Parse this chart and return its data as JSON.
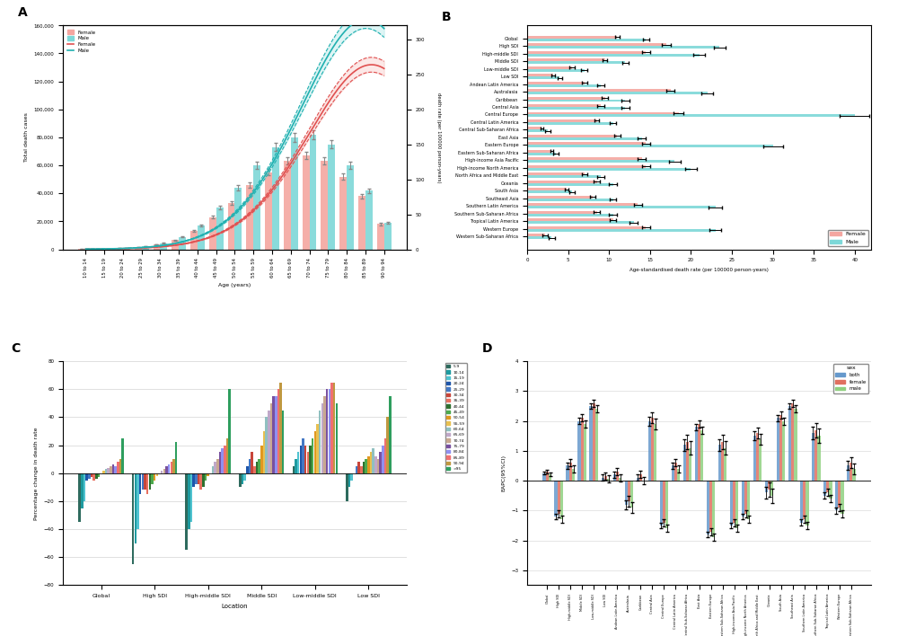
{
  "A": {
    "age_groups": [
      "10 to 14",
      "15 to 19",
      "20 to 24",
      "25 to 29",
      "30 to 34",
      "35 to 39",
      "40 to 44",
      "45 to 49",
      "50 to 54",
      "55 to 59",
      "60 to 64",
      "65 to 69",
      "70 to 74",
      "75 to 79",
      "80 to 84",
      "85 to 89",
      "90 to 94"
    ],
    "female_deaths": [
      300,
      500,
      900,
      1800,
      3500,
      6500,
      13000,
      23000,
      33000,
      46000,
      55000,
      63000,
      67000,
      63000,
      52000,
      38000,
      18000
    ],
    "male_deaths": [
      350,
      600,
      1000,
      2200,
      4500,
      9000,
      17000,
      30000,
      44000,
      60000,
      73000,
      80000,
      82000,
      75000,
      60000,
      42000,
      19000
    ],
    "female_rate": [
      0.3,
      0.5,
      0.9,
      1.8,
      3.5,
      6.5,
      13,
      23,
      36,
      58,
      85,
      115,
      155,
      205,
      245,
      260,
      270
    ],
    "male_rate": [
      0.3,
      0.6,
      1.1,
      2.5,
      5.0,
      10,
      18,
      33,
      52,
      80,
      120,
      165,
      225,
      280,
      315,
      320,
      325
    ],
    "female_color": "#F4A6A0",
    "male_color": "#7DD8D8",
    "female_line": "#E05050",
    "male_line": "#20B0B0",
    "female_line_dark": "#C03030",
    "male_line_dark": "#108080",
    "ylabel_left": "Total death cases",
    "ylabel_right": "death rate (per 100000 person-years)",
    "xlabel": "Age (years)",
    "ylim_left": 160000,
    "ylim_right": 320
  },
  "B": {
    "regions": [
      "Western Sub-Saharan Africa",
      "Western Europe",
      "Tropical Latin America",
      "Southern Sub-Saharan Africa",
      "Southern Latin America",
      "Southeast Asia",
      "South Asia",
      "Oceania",
      "North Africa and Middle East",
      "High-income North America",
      "High-income Asia Pacific",
      "Eastern Sub-Saharan Africa",
      "Eastern Europe",
      "East Asia",
      "Central Sub-Saharan Africa",
      "Central Latin America",
      "Central Europe",
      "Central Asia",
      "Caribbean",
      "Australasia",
      "Andean Latin America",
      "Low SDI",
      "Low-middle SDI",
      "Middle SDI",
      "High-middle SDI",
      "High SDI",
      "Global"
    ],
    "female_vals": [
      2.2,
      14.5,
      10.5,
      8.5,
      13.5,
      8.0,
      4.8,
      8.5,
      7.0,
      14.5,
      14.0,
      3.0,
      14.5,
      11.0,
      1.8,
      8.5,
      18.5,
      9.0,
      9.5,
      17.5,
      7.0,
      3.2,
      5.5,
      9.5,
      14.5,
      17.0,
      11.0
    ],
    "male_vals": [
      3.0,
      23.0,
      13.0,
      10.5,
      23.0,
      10.5,
      5.5,
      10.5,
      9.0,
      20.0,
      18.0,
      3.5,
      30.0,
      14.0,
      2.5,
      10.5,
      40.0,
      12.0,
      12.0,
      22.0,
      9.0,
      4.0,
      7.0,
      12.0,
      21.0,
      23.5,
      14.5
    ],
    "female_err": [
      0.3,
      0.5,
      0.4,
      0.4,
      0.5,
      0.3,
      0.2,
      0.4,
      0.3,
      0.5,
      0.5,
      0.2,
      0.5,
      0.4,
      0.2,
      0.3,
      0.6,
      0.4,
      0.4,
      0.5,
      0.3,
      0.2,
      0.3,
      0.3,
      0.5,
      0.5,
      0.3
    ],
    "male_err": [
      0.4,
      0.7,
      0.5,
      0.5,
      0.8,
      0.4,
      0.3,
      0.5,
      0.4,
      0.7,
      0.7,
      0.3,
      1.2,
      0.5,
      0.3,
      0.4,
      1.8,
      0.5,
      0.5,
      0.7,
      0.4,
      0.3,
      0.4,
      0.4,
      0.7,
      0.7,
      0.4
    ],
    "female_color": "#F4A6A0",
    "male_color": "#7DD8D8",
    "xlabel": "Age-standardised death rate (per 100000 person-years)",
    "xlim": 42
  },
  "C": {
    "locations": [
      "Global",
      "High SDI",
      "High-middle SDI",
      "Middle SDI",
      "Low-middle SDI",
      "Low SDI"
    ],
    "age_groups": [
      "5-9",
      "10-14",
      "15-19",
      "20-24",
      "25-29",
      "30-34",
      "35-39",
      "40-44",
      "45-49",
      "50-54",
      "55-59",
      "60-64",
      "65-69",
      "70-74",
      "75-79",
      "80-84",
      "85-89",
      "90-94",
      ">95"
    ],
    "colors": [
      "#2E6B5E",
      "#1E9BA0",
      "#4FC3D0",
      "#1E55AA",
      "#4478C4",
      "#C8453A",
      "#E87060",
      "#2E7030",
      "#4EAA4E",
      "#E09820",
      "#E8C050",
      "#90C0C0",
      "#C0A8C8",
      "#C8A890",
      "#7850A0",
      "#9090F0",
      "#F07070",
      "#C09840",
      "#2E9E5E"
    ],
    "data": {
      "Global": [
        -35,
        -25,
        -20,
        -5,
        -4,
        -3,
        -5,
        -4,
        -3,
        0,
        2,
        3,
        4,
        5,
        6,
        5,
        8,
        10,
        25
      ],
      "High SDI": [
        -65,
        -50,
        -40,
        -15,
        -12,
        -12,
        -15,
        -12,
        -8,
        -5,
        -2,
        0,
        2,
        3,
        5,
        6,
        8,
        10,
        22
      ],
      "High-middle SDI": [
        -55,
        -40,
        -35,
        -10,
        -8,
        -8,
        -12,
        -10,
        -5,
        -2,
        0,
        5,
        8,
        10,
        15,
        18,
        20,
        25,
        60
      ],
      "Middle SDI": [
        -10,
        -8,
        -5,
        5,
        10,
        15,
        5,
        8,
        10,
        20,
        30,
        40,
        45,
        50,
        55,
        55,
        60,
        65,
        45
      ],
      "Low-middle SDI": [
        5,
        10,
        15,
        20,
        25,
        20,
        15,
        20,
        25,
        30,
        35,
        45,
        50,
        55,
        60,
        60,
        65,
        65,
        50
      ],
      "Low SDI": [
        -20,
        -10,
        -5,
        0,
        5,
        8,
        5,
        8,
        10,
        12,
        15,
        18,
        12,
        10,
        15,
        20,
        25,
        40,
        55
      ]
    },
    "ylabel": "Percentage change in death rate",
    "xlabel": "Location",
    "ylim": [
      -80,
      80
    ]
  },
  "D": {
    "locations": [
      "Global",
      "High SDI",
      "High-middle SDI",
      "Middle SDI",
      "Low-middle SDI",
      "Low SDI",
      "Andean Latin America",
      "Australasia",
      "Caribbean",
      "Central Asia",
      "Central Europe",
      "Central Latin America",
      "Central Sub-Saharan Africa",
      "East Asia",
      "Eastern Europe",
      "Eastern Sub-Saharan Africa",
      "High-income Asia Pacific",
      "High-income North America",
      "North Africa and Middle East",
      "Oceania",
      "South Asia",
      "Southeast Asia",
      "Southern Latin America",
      "Southern Sub-Saharan Africa",
      "Tropical Latin America",
      "Western Europe",
      "Western Sub-Saharan Africa"
    ],
    "both_vals": [
      0.25,
      -1.2,
      0.5,
      2.0,
      2.5,
      0.1,
      0.2,
      -0.8,
      0.1,
      2.0,
      -1.5,
      0.5,
      1.2,
      1.8,
      -1.8,
      1.2,
      -1.5,
      -1.2,
      1.5,
      -0.4,
      2.1,
      2.5,
      -1.4,
      1.6,
      -0.5,
      -1.0,
      0.5
    ],
    "female_vals": [
      0.3,
      -1.1,
      0.6,
      2.1,
      2.6,
      0.15,
      0.3,
      -0.7,
      0.2,
      2.1,
      -1.4,
      0.6,
      1.3,
      1.9,
      -1.7,
      1.3,
      -1.4,
      -1.1,
      1.6,
      -0.3,
      2.2,
      2.6,
      -1.3,
      1.7,
      -0.4,
      -0.9,
      0.6
    ],
    "male_vals": [
      0.2,
      -1.3,
      0.4,
      1.9,
      2.4,
      0.05,
      0.1,
      -0.9,
      0.0,
      1.9,
      -1.6,
      0.4,
      1.1,
      1.7,
      -1.9,
      1.1,
      -1.6,
      -1.3,
      1.4,
      -0.5,
      2.0,
      2.4,
      -1.5,
      1.5,
      -0.6,
      -1.1,
      0.4
    ],
    "both_err": [
      0.05,
      0.1,
      0.1,
      0.1,
      0.1,
      0.1,
      0.1,
      0.15,
      0.1,
      0.15,
      0.1,
      0.1,
      0.2,
      0.1,
      0.1,
      0.2,
      0.1,
      0.1,
      0.15,
      0.2,
      0.1,
      0.1,
      0.1,
      0.2,
      0.1,
      0.1,
      0.15
    ],
    "female_err": [
      0.06,
      0.12,
      0.12,
      0.12,
      0.12,
      0.12,
      0.12,
      0.18,
      0.12,
      0.18,
      0.12,
      0.12,
      0.24,
      0.12,
      0.12,
      0.24,
      0.12,
      0.12,
      0.18,
      0.24,
      0.12,
      0.12,
      0.12,
      0.24,
      0.12,
      0.12,
      0.18
    ],
    "male_err": [
      0.06,
      0.12,
      0.12,
      0.12,
      0.12,
      0.12,
      0.12,
      0.18,
      0.12,
      0.18,
      0.12,
      0.12,
      0.24,
      0.12,
      0.12,
      0.24,
      0.12,
      0.12,
      0.18,
      0.24,
      0.12,
      0.12,
      0.12,
      0.24,
      0.12,
      0.12,
      0.18
    ],
    "both_color": "#6699CC",
    "female_color": "#E07060",
    "male_color": "#90D080",
    "ylabel": "EAPC(95%CI)",
    "xlabel": "Location",
    "ylim": [
      -3.5,
      4.0
    ]
  }
}
